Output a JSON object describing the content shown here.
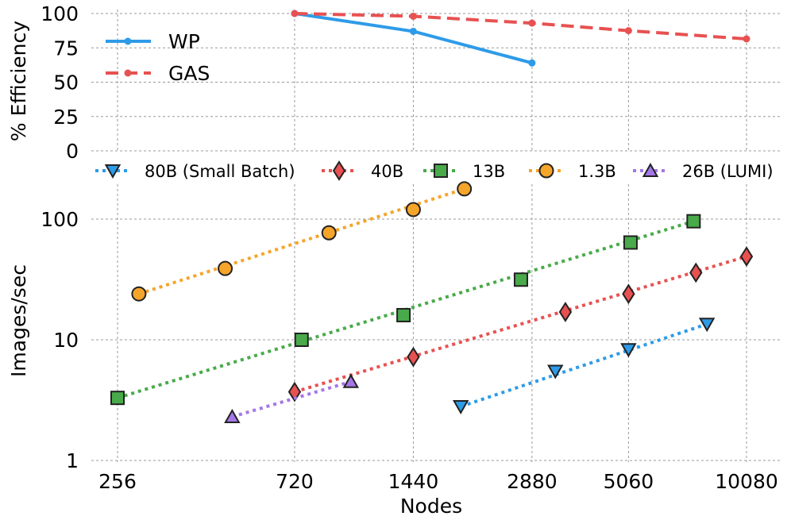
{
  "chart_data": [
    {
      "type": "line",
      "ylabel": "% Efficiency",
      "ylim": [
        0,
        100
      ],
      "yticks": [
        0,
        25,
        50,
        75,
        100
      ],
      "grid": true,
      "legend_position": "top-left",
      "series": [
        {
          "name": "WP",
          "color": "#2e9be8",
          "style": "solid",
          "x": [
            720,
            1440,
            2880
          ],
          "y": [
            100,
            87,
            64
          ]
        },
        {
          "name": "GAS",
          "color": "#e85151",
          "style": "dashed",
          "x": [
            720,
            1440,
            2880,
            5060,
            10080
          ],
          "y": [
            100,
            98,
            93,
            87.5,
            81.5
          ]
        }
      ]
    },
    {
      "type": "scatter",
      "ylabel": "Images/sec",
      "xlabel": "Nodes",
      "xscale": "log",
      "yscale": "log",
      "xticks": [
        256,
        720,
        1440,
        2880,
        5060,
        10080
      ],
      "xtick_labels": [
        "256",
        "720",
        "1440",
        "2880",
        "5060",
        "10080"
      ],
      "ylim": [
        1,
        250
      ],
      "yticks": [
        1,
        10,
        100
      ],
      "ytick_labels": [
        "1",
        "10",
        "100"
      ],
      "grid": true,
      "legend_position": "top",
      "series": [
        {
          "name": "80B (Small Batch)",
          "color": "#2e9be8",
          "marker": "triangle-down",
          "x": [
            1900,
            3300,
            5060,
            8000
          ],
          "y": [
            2.8,
            5.5,
            8.3,
            13.5
          ]
        },
        {
          "name": "40B",
          "color": "#e85151",
          "marker": "diamond",
          "x": [
            720,
            1440,
            3500,
            5060,
            7500,
            10080
          ],
          "y": [
            3.7,
            7.2,
            17,
            24,
            36,
            49
          ]
        },
        {
          "name": "13B",
          "color": "#48aa4a",
          "marker": "square",
          "x": [
            256,
            750,
            1360,
            2700,
            5120,
            7400
          ],
          "y": [
            3.3,
            10,
            16,
            31.5,
            64,
            96
          ]
        },
        {
          "name": "1.3B",
          "color": "#f5a52a",
          "marker": "circle",
          "x": [
            290,
            480,
            880,
            1440,
            1940
          ],
          "y": [
            24,
            39,
            77,
            120,
            178
          ]
        },
        {
          "name": "26B (LUMI)",
          "color": "#a577e6",
          "marker": "triangle-up",
          "x": [
            500,
            1000
          ],
          "y": [
            2.3,
            4.5
          ]
        }
      ]
    }
  ]
}
